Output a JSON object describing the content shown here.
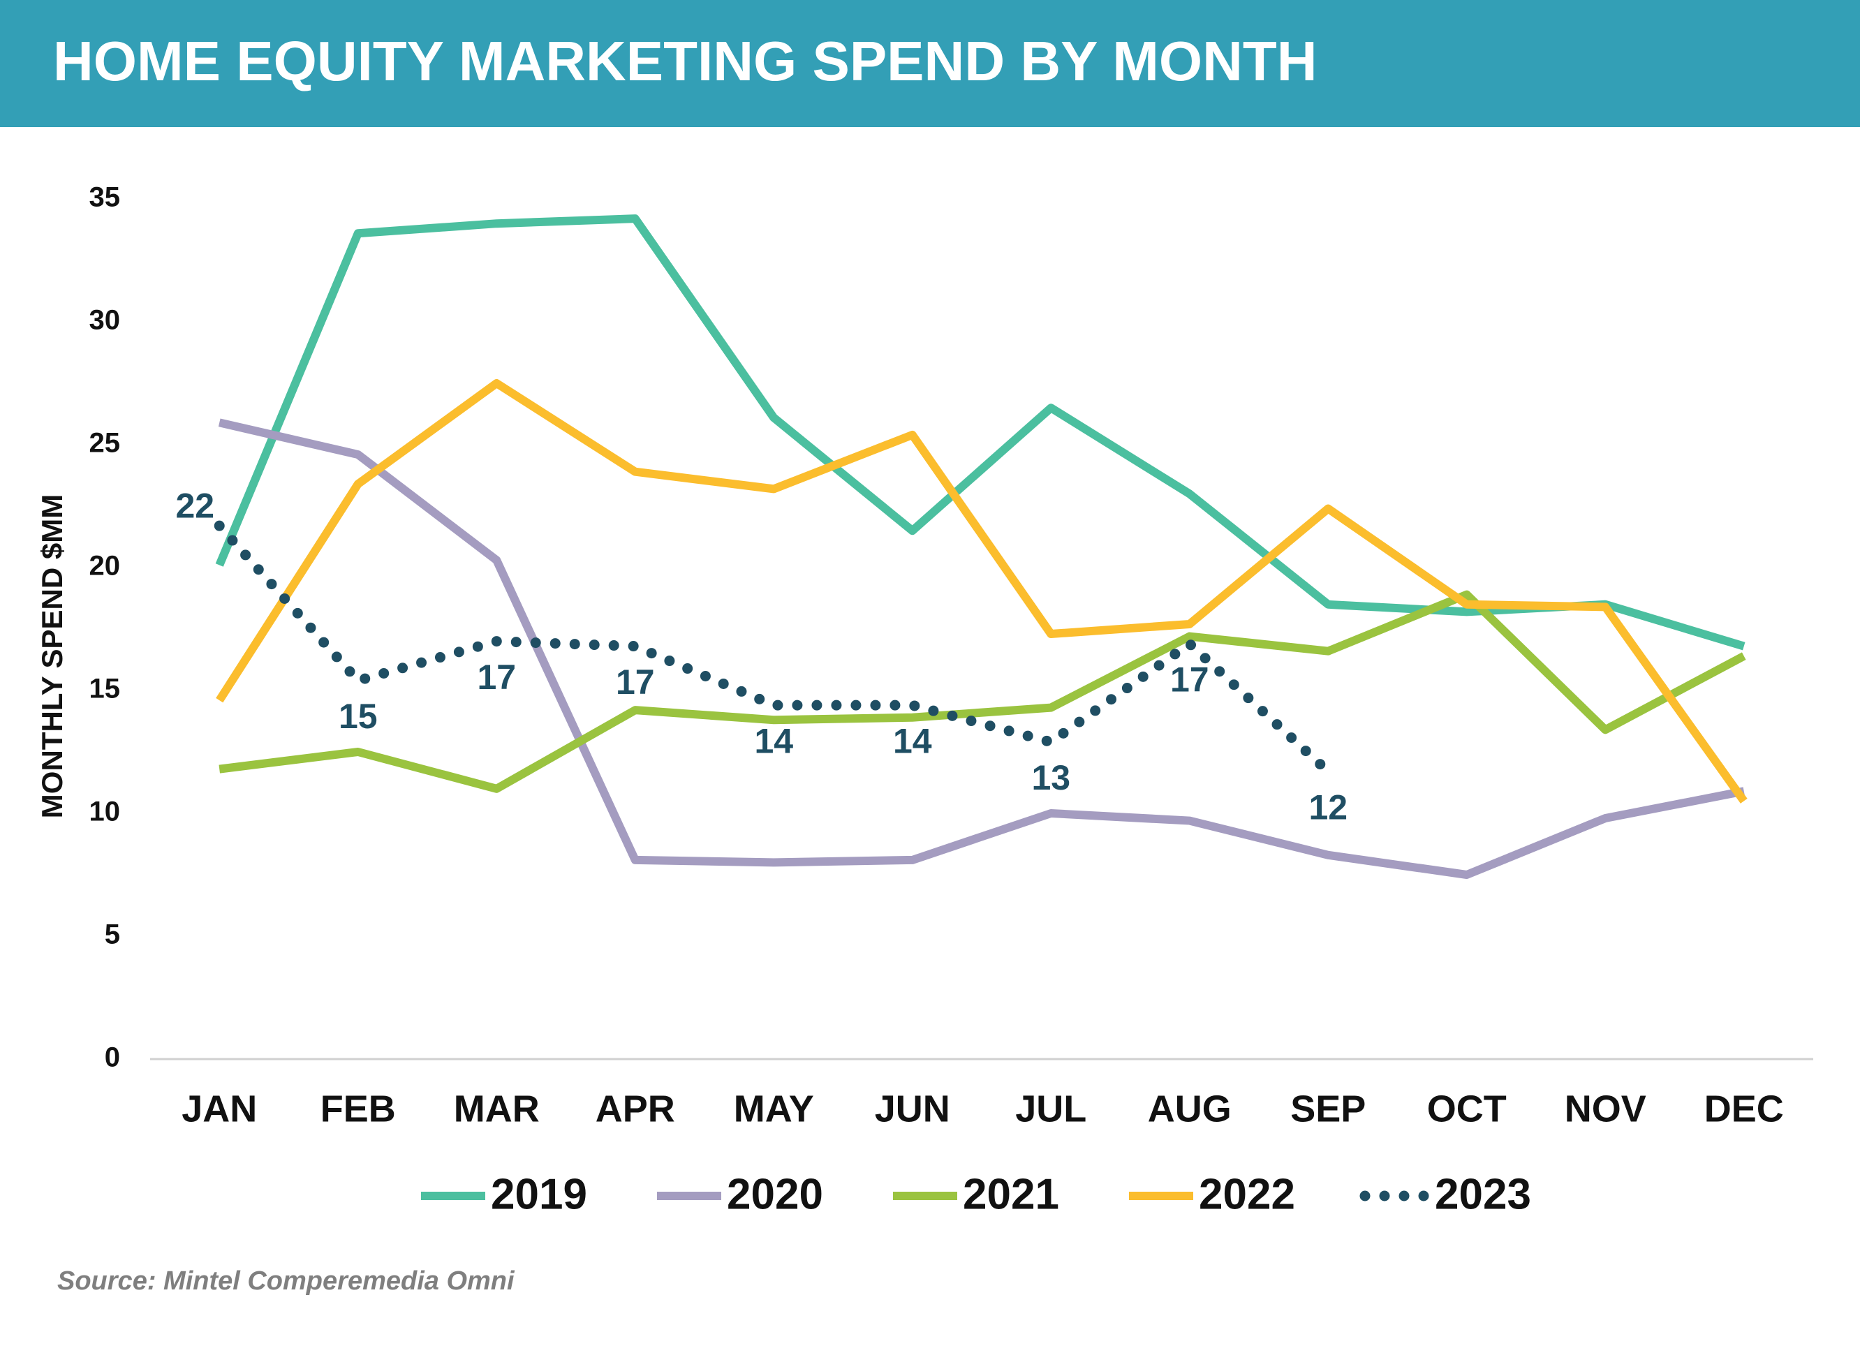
{
  "chart_data": {
    "type": "line",
    "title": "HOME EQUITY MARKETING SPEND BY MONTH",
    "y_label": "MONTHLY SPEND $MM",
    "source": "Source: Mintel Comperemedia Omni",
    "categories": [
      "JAN",
      "FEB",
      "MAR",
      "APR",
      "MAY",
      "JUN",
      "JUL",
      "AUG",
      "SEP",
      "OCT",
      "NOV",
      "DEC"
    ],
    "ylim": [
      0,
      35
    ],
    "yticks": [
      0,
      5,
      10,
      15,
      20,
      25,
      30,
      35
    ],
    "legend": "bottom",
    "series": [
      {
        "name": "2019",
        "color": "#4bbf9f",
        "style": "solid",
        "values": [
          20.1,
          33.6,
          34.0,
          34.2,
          26.1,
          21.5,
          26.5,
          23.0,
          18.5,
          18.2,
          18.5,
          16.8
        ]
      },
      {
        "name": "2020",
        "color": "#a49cc0",
        "style": "solid",
        "values": [
          25.9,
          24.6,
          20.3,
          8.1,
          8.0,
          8.1,
          10.0,
          9.7,
          8.3,
          7.5,
          9.8,
          10.9
        ]
      },
      {
        "name": "2021",
        "color": "#9ac33f",
        "style": "solid",
        "values": [
          11.8,
          12.5,
          11.0,
          14.2,
          13.8,
          13.9,
          14.3,
          17.2,
          16.6,
          18.9,
          13.4,
          16.4
        ]
      },
      {
        "name": "2022",
        "color": "#fbbd2d",
        "style": "solid",
        "values": [
          14.6,
          23.4,
          27.5,
          23.9,
          23.2,
          25.4,
          17.3,
          17.7,
          22.4,
          18.5,
          18.4,
          10.5
        ]
      },
      {
        "name": "2023",
        "color": "#1f4e63",
        "style": "dotted",
        "values": [
          21.7,
          15.4,
          17.0,
          16.8,
          14.4,
          14.4,
          12.9,
          16.9,
          11.7,
          null,
          null,
          null
        ],
        "value_labels": [
          "22",
          "15",
          "17",
          "17",
          "14",
          "14",
          "13",
          "17",
          "12",
          null,
          null,
          null
        ]
      }
    ]
  }
}
